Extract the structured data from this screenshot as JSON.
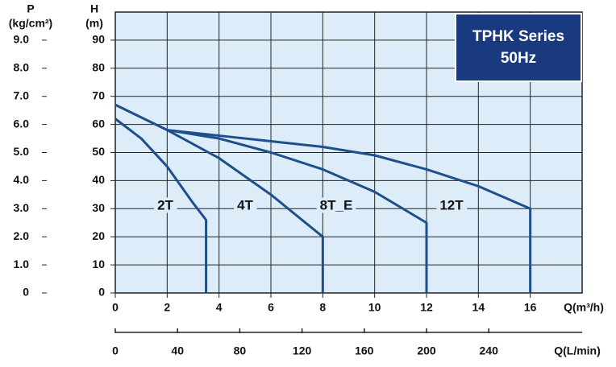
{
  "chart_data": {
    "type": "line",
    "title": "TPHK Series",
    "subtitle": "50Hz",
    "y_label": "H",
    "y_unit": "(m)",
    "y2_label": "P",
    "y2_unit": "(kg/cm²)",
    "x_label": "Q(m³/h)",
    "x2_label": "Q(L/min)",
    "xlim": [
      0,
      18
    ],
    "xticks": [
      0,
      2,
      4,
      6,
      8,
      10,
      12,
      14,
      16
    ],
    "ylim": [
      0,
      100
    ],
    "yticks": [
      0,
      10,
      20,
      30,
      40,
      50,
      60,
      70,
      80,
      90
    ],
    "y2lim": [
      0,
      10
    ],
    "y2ticks": [
      0,
      {
        "value": 1,
        "label": "1.0"
      },
      {
        "value": 2,
        "label": "2.0"
      },
      {
        "value": 3,
        "label": "3.0"
      },
      {
        "value": 4,
        "label": "4.0"
      },
      {
        "value": 5,
        "label": "5.0"
      },
      {
        "value": 6,
        "label": "6.0"
      },
      {
        "value": 7,
        "label": "7.0"
      },
      {
        "value": 8,
        "label": "8.0"
      },
      {
        "value": 9,
        "label": "9.0"
      }
    ],
    "x2lim": [
      0,
      300
    ],
    "x2ticks": [
      0,
      40,
      80,
      120,
      160,
      200,
      240
    ],
    "grid": true,
    "series": [
      {
        "name": "2T",
        "color": "#1f4e8c",
        "x": [
          0,
          1,
          2,
          3,
          3.5,
          3.5
        ],
        "values": [
          62,
          55,
          45,
          32,
          26,
          0
        ]
      },
      {
        "name": "4T",
        "color": "#1f4e8c",
        "x": [
          0,
          2,
          4,
          6,
          8,
          8
        ],
        "values": [
          67,
          58,
          48,
          35,
          20,
          0
        ]
      },
      {
        "name": "8T_E",
        "color": "#1f4e8c",
        "x": [
          0,
          2,
          4,
          6,
          8,
          10,
          12,
          12
        ],
        "values": [
          67,
          58,
          55,
          50,
          44,
          36,
          25,
          0
        ]
      },
      {
        "name": "12T",
        "color": "#1f4e8c",
        "x": [
          2,
          4,
          6,
          8,
          10,
          12,
          14,
          16,
          16
        ],
        "values": [
          58,
          56,
          54,
          52,
          49,
          44,
          38,
          30,
          0
        ]
      }
    ]
  }
}
